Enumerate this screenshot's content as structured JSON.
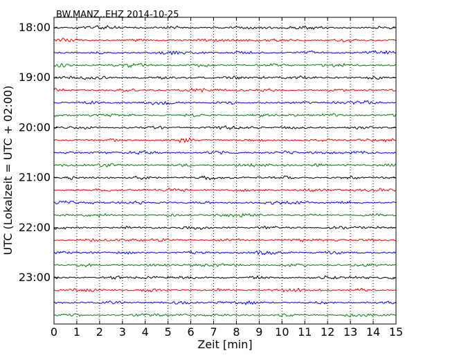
{
  "chart_data": {
    "type": "line",
    "title": "BW.MANZ..EHZ 2014-10-25",
    "xlabel": "Zeit  [min]",
    "ylabel": "UTC (Lokalzeit = UTC + 02:00)",
    "xlim": [
      0,
      15
    ],
    "x_ticks": [
      "0",
      "1",
      "2",
      "3",
      "4",
      "5",
      "6",
      "7",
      "8",
      "9",
      "10",
      "11",
      "12",
      "13",
      "14",
      "15"
    ],
    "y_tick_labels": [
      "18:00",
      "19:00",
      "20:00",
      "21:00",
      "22:00",
      "23:00"
    ],
    "traces_per_hour": 4,
    "trace_count": 24,
    "trace_colors": [
      "#000000",
      "#ff0000",
      "#0000ff",
      "#008000"
    ],
    "grid": "vertical dotted at each minute",
    "series": [
      {
        "start": "18:00"
      },
      {
        "start": "18:15"
      },
      {
        "start": "18:30"
      },
      {
        "start": "18:45"
      },
      {
        "start": "19:00"
      },
      {
        "start": "19:15"
      },
      {
        "start": "19:30"
      },
      {
        "start": "19:45"
      },
      {
        "start": "20:00"
      },
      {
        "start": "20:15"
      },
      {
        "start": "20:30"
      },
      {
        "start": "20:45"
      },
      {
        "start": "21:00"
      },
      {
        "start": "21:15"
      },
      {
        "start": "21:30"
      },
      {
        "start": "21:45"
      },
      {
        "start": "22:00"
      },
      {
        "start": "22:15"
      },
      {
        "start": "22:30"
      },
      {
        "start": "22:45"
      },
      {
        "start": "23:00"
      },
      {
        "start": "23:15"
      },
      {
        "start": "23:30"
      },
      {
        "start": "23:45"
      }
    ]
  }
}
